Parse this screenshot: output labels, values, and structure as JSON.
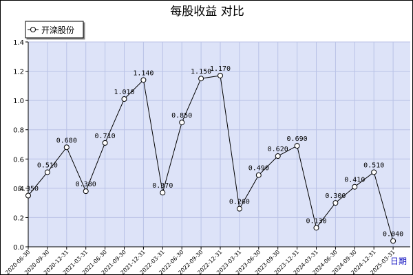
{
  "chart_data": {
    "type": "line",
    "title": "每股收益 对比",
    "xlabel": "日期",
    "ylabel": "",
    "ylim": [
      0,
      1.4
    ],
    "yticks": [
      "0.0",
      "0.2",
      "0.4",
      "0.6",
      "0.8",
      "1.0",
      "1.2",
      "1.4"
    ],
    "legend_position": "top-left",
    "grid": true,
    "colors": {
      "plot_bg": "#dde3f8",
      "grid": "#b9c2e6",
      "line": "#000000",
      "marker_fill": "#ffffff"
    },
    "categories": [
      "2020-06-30",
      "2020-09-30",
      "2020-12-31",
      "2021-03-31",
      "2021-06-30",
      "2021-09-30",
      "2021-12-31",
      "2022-03-31",
      "2022-06-30",
      "2022-09-30",
      "2022-12-31",
      "2023-03-31",
      "2023-06-30",
      "2023-09-30",
      "2023-12-31",
      "2024-03-31",
      "2024-06-30",
      "2024-09-30",
      "2024-12-31",
      "2025-03-31"
    ],
    "series": [
      {
        "name": "开滦股份",
        "values": [
          0.35,
          0.51,
          0.68,
          0.38,
          0.71,
          1.01,
          1.14,
          0.37,
          0.85,
          1.15,
          1.17,
          0.26,
          0.49,
          0.62,
          0.69,
          0.13,
          0.3,
          0.41,
          0.51,
          0.04
        ],
        "labels": [
          "0.350",
          "0.510",
          "0.680",
          "0.380",
          "0.710",
          "1.010",
          "1.140",
          "0.370",
          "0.850",
          "1.150",
          "1.170",
          "0.260",
          "0.490",
          "0.620",
          "0.690",
          "0.130",
          "0.300",
          "0.410",
          "0.510",
          "0.040"
        ]
      }
    ]
  }
}
